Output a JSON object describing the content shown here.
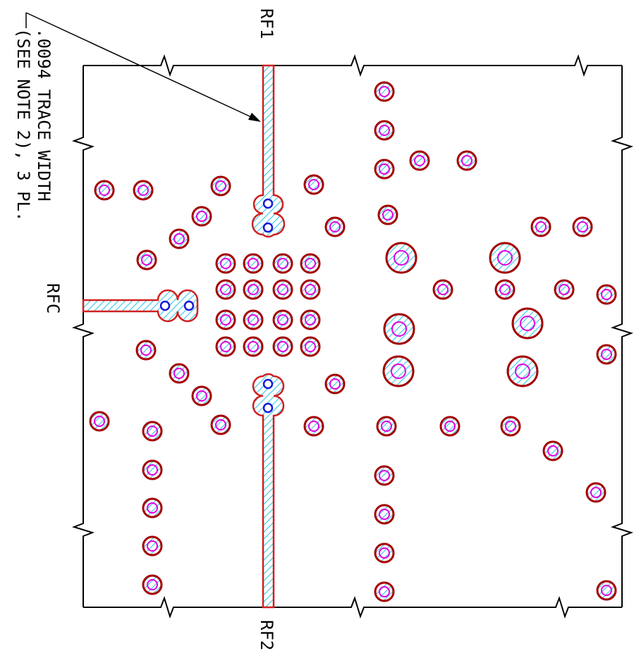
{
  "labels": {
    "rf1": "RF1",
    "rf2": "RF2",
    "rfc": "RFC",
    "note_line1": ".0094 TRACE WIDTH",
    "note_line2": "(SEE NOTE 2), 3 PL."
  },
  "colors": {
    "outline": "#000000",
    "pad_ring": "#a40000",
    "via_hole": "#e000e0",
    "hatch": "#33c8e8",
    "trace_edge": "#d02020",
    "trace_via": "#1818d8"
  }
}
